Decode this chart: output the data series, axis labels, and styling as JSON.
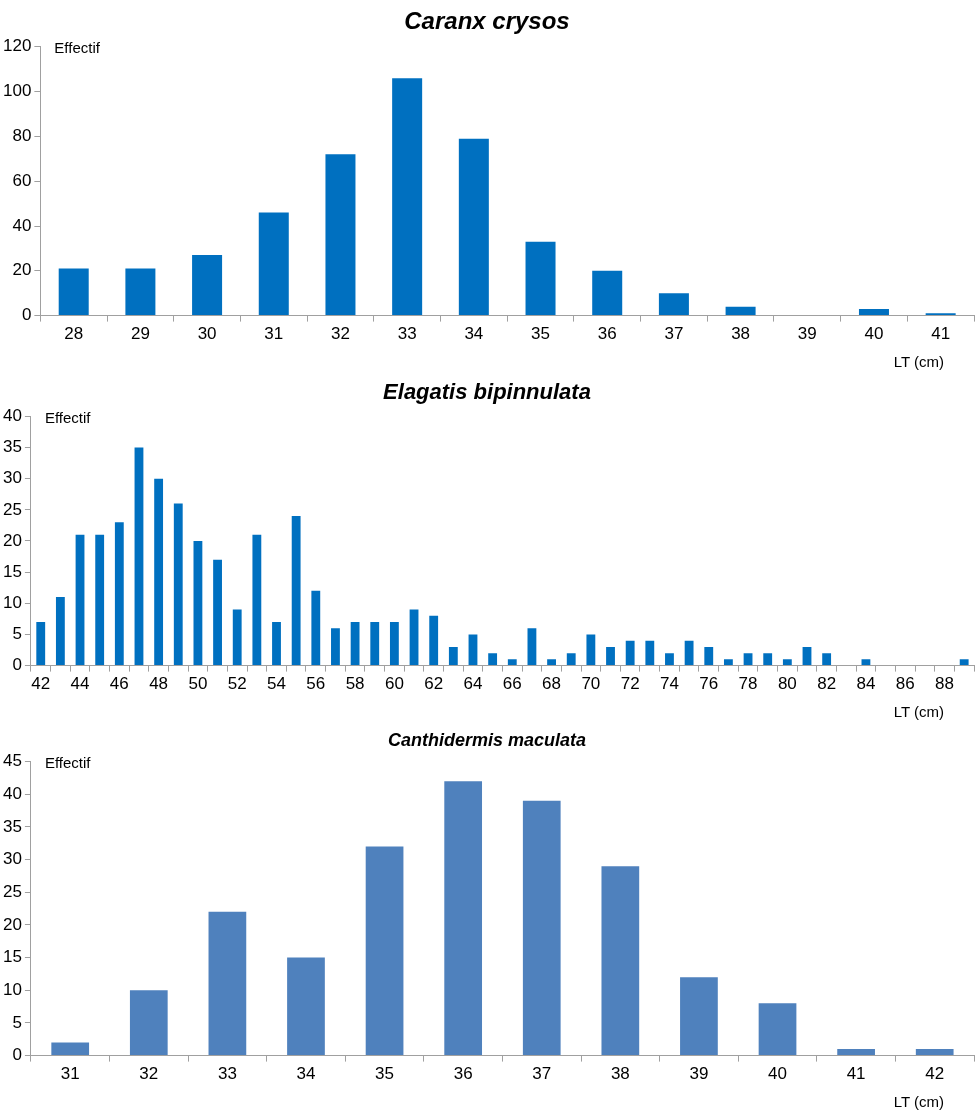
{
  "chart_data": [
    {
      "type": "bar",
      "title": "Caranx crysos",
      "ylabel": "Effectif",
      "xlabel": "LT (cm)",
      "categories": [
        "28",
        "29",
        "30",
        "31",
        "32",
        "33",
        "34",
        "35",
        "36",
        "37",
        "38",
        "39",
        "40",
        "41"
      ],
      "values": [
        21,
        21,
        27,
        46,
        72,
        106,
        79,
        33,
        20,
        10,
        4,
        0,
        3,
        1
      ],
      "color": "#0070c0",
      "ylim": [
        0,
        120
      ],
      "yticks": [
        0,
        20,
        40,
        60,
        80,
        100,
        120
      ]
    },
    {
      "type": "bar",
      "title": "Elagatis bipinnulata",
      "ylabel": "Effectif",
      "xlabel": "LT (cm)",
      "categories": [
        "42",
        null,
        "44",
        null,
        "46",
        null,
        "48",
        null,
        "50",
        null,
        "52",
        null,
        "54",
        null,
        "56",
        null,
        "58",
        null,
        "60",
        null,
        "62",
        null,
        "64",
        null,
        "66",
        null,
        "68",
        null,
        "70",
        null,
        "72",
        null,
        "74",
        null,
        "76",
        null,
        "78",
        null,
        "80",
        null,
        "82",
        null,
        "84",
        null,
        "86",
        null,
        "88",
        null
      ],
      "values": [
        7,
        11,
        21,
        21,
        23,
        35,
        30,
        26,
        20,
        17,
        9,
        21,
        7,
        24,
        12,
        6,
        7,
        7,
        7,
        9,
        8,
        3,
        5,
        2,
        1,
        6,
        1,
        2,
        5,
        3,
        4,
        4,
        2,
        4,
        3,
        1,
        2,
        2,
        1,
        3,
        2,
        0,
        1,
        0,
        0,
        0,
        0,
        1
      ],
      "color": "#0070c0",
      "ylim": [
        0,
        40
      ],
      "yticks": [
        0,
        5,
        10,
        15,
        20,
        25,
        30,
        35,
        40
      ]
    },
    {
      "type": "bar",
      "title": "Canthidermis maculata",
      "ylabel": "Effectif",
      "xlabel": "LT (cm)",
      "categories": [
        "31",
        "32",
        "33",
        "34",
        "35",
        "36",
        "37",
        "38",
        "39",
        "40",
        "41",
        "42"
      ],
      "values": [
        2,
        10,
        22,
        15,
        32,
        42,
        39,
        29,
        12,
        8,
        1,
        1
      ],
      "color": "#4f81bd",
      "ylim": [
        0,
        45
      ],
      "yticks": [
        0,
        5,
        10,
        15,
        20,
        25,
        30,
        35,
        40,
        45
      ]
    }
  ]
}
